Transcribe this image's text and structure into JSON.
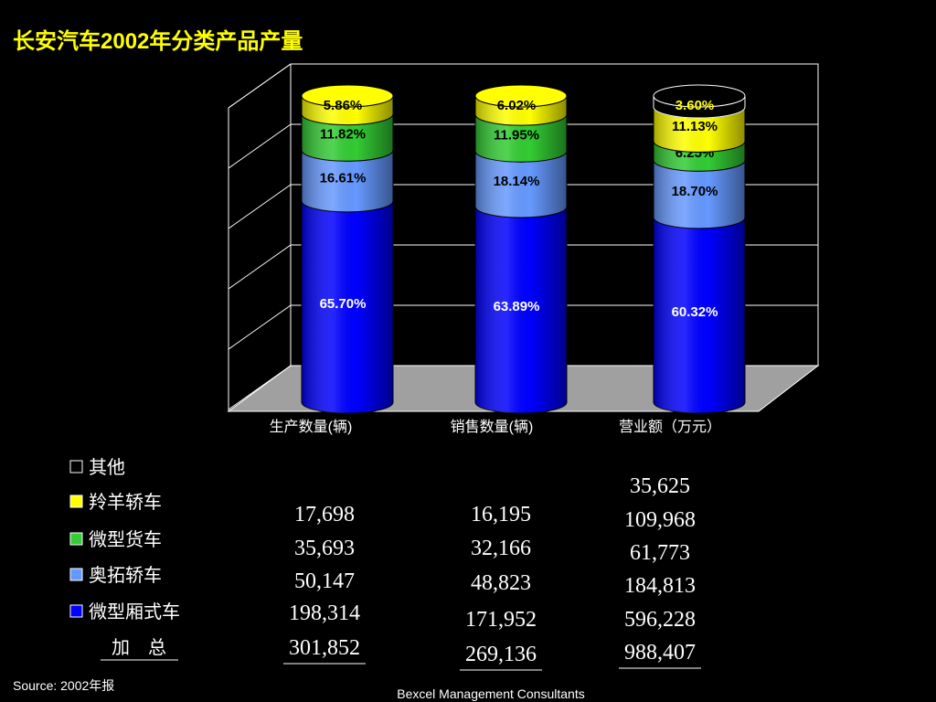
{
  "chart_data": {
    "type": "bar",
    "stacked": true,
    "title": "长安汽车2002年分类产品产量",
    "categories": [
      "生产数量(辆)",
      "销售数量(辆)",
      "营业额（万元）"
    ],
    "series": [
      {
        "name": "微型厢式车",
        "color": "#0000ff",
        "values": [
          65.7,
          63.89,
          60.32
        ],
        "value_labels": [
          "65.70%",
          "63.89%",
          "60.32%"
        ]
      },
      {
        "name": "奥拓轿车",
        "color": "#6699ff",
        "values": [
          16.61,
          18.14,
          18.7
        ],
        "value_labels": [
          "16.61%",
          "18.14%",
          "18.70%"
        ]
      },
      {
        "name": "微型货车",
        "color": "#33cc33",
        "values": [
          11.82,
          11.95,
          6.25
        ],
        "value_labels": [
          "11.82%",
          "11.95%",
          "6.25%"
        ]
      },
      {
        "name": "羚羊轿车",
        "color": "#ffff00",
        "values": [
          5.86,
          6.02,
          11.13
        ],
        "value_labels": [
          "5.86%",
          "6.02%",
          "11.13%"
        ]
      },
      {
        "name": "其他",
        "color": "#000000",
        "values": [
          null,
          null,
          3.6
        ],
        "value_labels": [
          null,
          null,
          "3.60%"
        ]
      }
    ],
    "ylim": [
      0,
      100
    ],
    "yticks": [
      0,
      20,
      40,
      60,
      80,
      100
    ],
    "grid": true
  },
  "table": {
    "rows": [
      [
        null,
        null,
        "35,625"
      ],
      [
        "17,698",
        "16,195",
        "109,968"
      ],
      [
        "35,693",
        "32,166",
        "61,773"
      ],
      [
        "50,147",
        "48,823",
        "184,813"
      ],
      [
        "198,314",
        "171,952",
        "596,228"
      ]
    ],
    "total_label": "加　总",
    "totals": [
      "301,852",
      "269,136",
      "988,407"
    ]
  },
  "source": "Source: 2002年报",
  "footer": "Bexcel Management Consultants"
}
